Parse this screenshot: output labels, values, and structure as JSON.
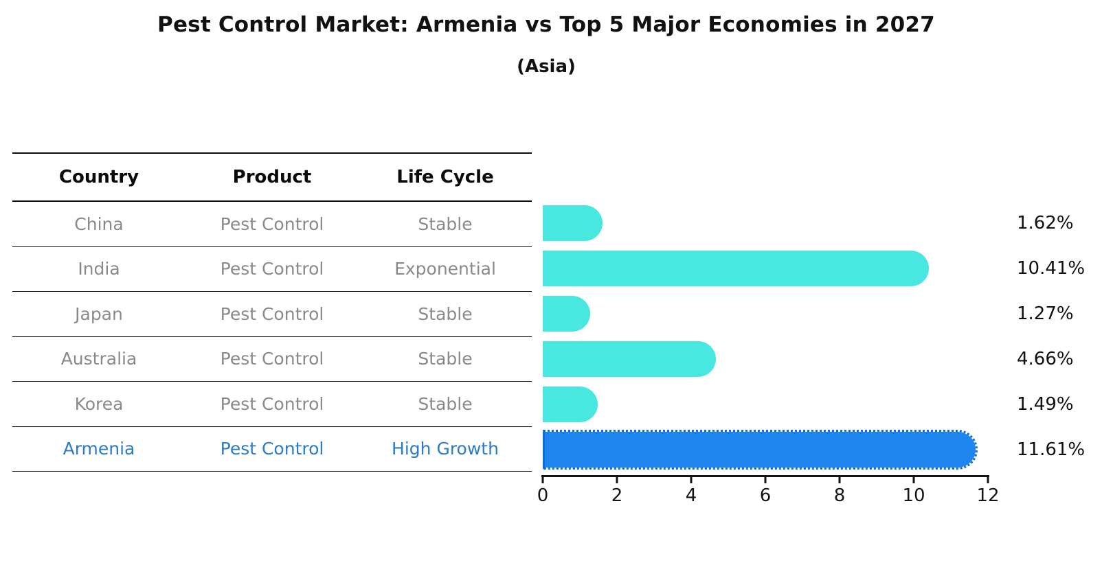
{
  "title": "Pest Control Market: Armenia vs Top 5 Major Economies in 2027",
  "subtitle": "(Asia)",
  "table": {
    "headers": [
      "Country",
      "Product",
      "Life Cycle"
    ],
    "rows": [
      {
        "country": "China",
        "product": "Pest Control",
        "life_cycle": "Stable",
        "highlight": false
      },
      {
        "country": "India",
        "product": "Pest Control",
        "life_cycle": "Exponential",
        "highlight": false
      },
      {
        "country": "Japan",
        "product": "Pest Control",
        "life_cycle": "Stable",
        "highlight": false
      },
      {
        "country": "Australia",
        "product": "Pest Control",
        "life_cycle": "Stable",
        "highlight": false
      },
      {
        "country": "Korea",
        "product": "Pest Control",
        "life_cycle": "Stable",
        "highlight": false
      },
      {
        "country": "Armenia",
        "product": "Pest Control",
        "life_cycle": "High Growth",
        "highlight": true
      }
    ]
  },
  "chart_data": {
    "type": "bar",
    "orientation": "horizontal",
    "title": "Pest Control Market: Armenia vs Top 5 Major Economies in 2027",
    "subtitle": "(Asia)",
    "categories": [
      "China",
      "India",
      "Japan",
      "Australia",
      "Korea",
      "Armenia"
    ],
    "values": [
      1.62,
      10.41,
      1.27,
      4.66,
      1.49,
      11.61
    ],
    "value_labels": [
      "1.62%",
      "10.41%",
      "1.27%",
      "4.66%",
      "1.49%",
      "11.61%"
    ],
    "xlim": [
      0,
      12
    ],
    "x_ticks": [
      "0",
      "2",
      "4",
      "6",
      "8",
      "10",
      "12"
    ],
    "grid": false,
    "legend": false,
    "highlight_index": 5,
    "bar_color": "#48e8e0",
    "highlight_color": "#1e85ee",
    "highlight_border_color": "#0e6bdf",
    "highlight_text_color": "#2b7bc9",
    "muted_text_color": "#8a8a8a"
  }
}
